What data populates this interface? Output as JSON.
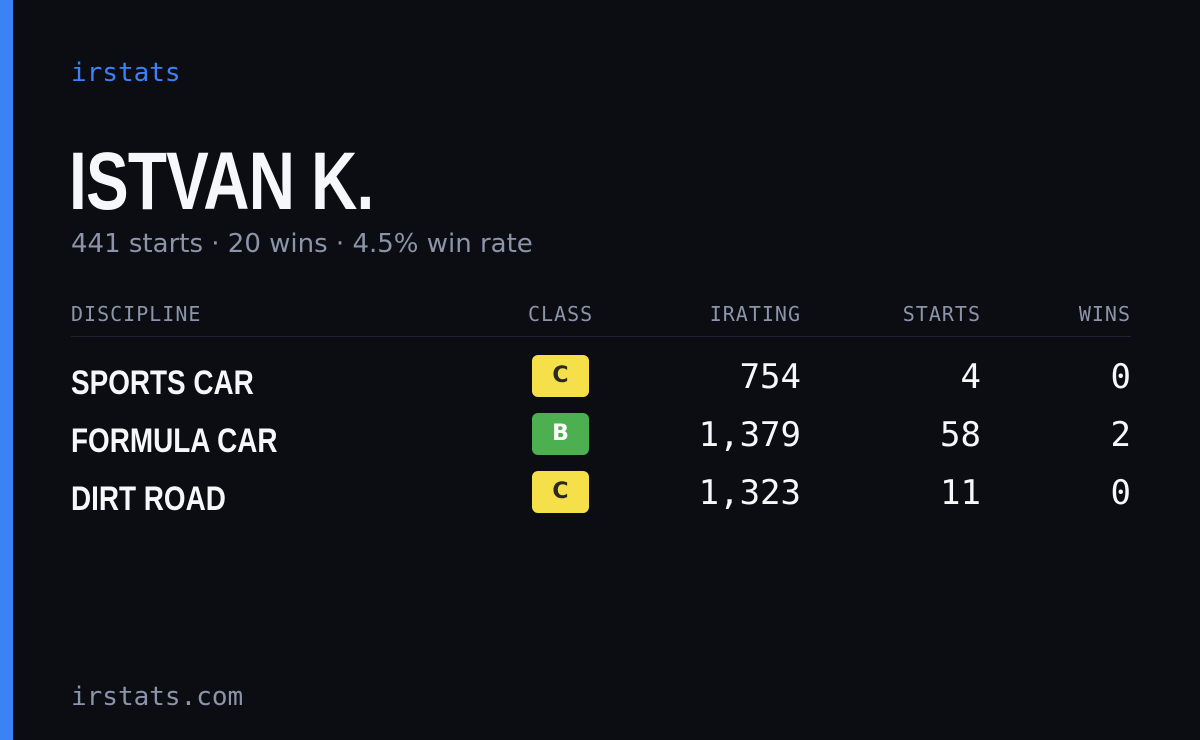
{
  "brand": "irstats",
  "driver": {
    "name": "ISTVAN K.",
    "summary": "441 starts · 20 wins · 4.5% win rate"
  },
  "table": {
    "headers": {
      "discipline": "DISCIPLINE",
      "class": "CLASS",
      "irating": "IRATING",
      "starts": "STARTS",
      "wins": "WINS"
    },
    "rows": [
      {
        "discipline": "SPORTS CAR",
        "class": "C",
        "irating": "754",
        "starts": "4",
        "wins": "0"
      },
      {
        "discipline": "FORMULA CAR",
        "class": "B",
        "irating": "1,379",
        "starts": "58",
        "wins": "2"
      },
      {
        "discipline": "DIRT ROAD",
        "class": "C",
        "irating": "1,323",
        "starts": "11",
        "wins": "0"
      }
    ]
  },
  "footer": {
    "url": "irstats.com"
  },
  "colors": {
    "accent": "#3b82f6",
    "background": "#0b0d13",
    "class_c": "#f5e04a",
    "class_b": "#4caf50"
  }
}
